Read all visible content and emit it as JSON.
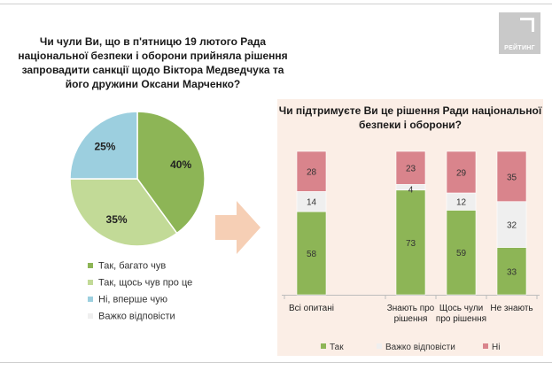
{
  "logo": {
    "text": "РЕЙТИНГ"
  },
  "chart_data": [
    {
      "type": "pie",
      "title": "Чи чули Ви, що в п'ятницю 19 лютого Рада національної безпеки і оборони прийняла рішення запровадити санкції щодо Віктора Медведчука та його дружини Оксани Марченко?",
      "slices": [
        {
          "label": "Так, багато чув",
          "value": 40,
          "display": "40%",
          "color": "#8db556"
        },
        {
          "label": "Так, щось чув про це",
          "value": 35,
          "display": "35%",
          "color": "#c2da97"
        },
        {
          "label": "Ні, вперше чую",
          "value": 25,
          "display": "25%",
          "color": "#9ccfdf"
        },
        {
          "label": "Важко відповісти",
          "value": 0,
          "display": "",
          "color": "#efefef"
        }
      ],
      "legend_position": "bottom"
    },
    {
      "type": "bar",
      "stacked": true,
      "title": "Чи підтримуєте Ви це рішення Ради національної безпеки і оборони?",
      "categories": [
        "Всі опитані",
        "Знають про рішення",
        "Щось чули про рішення",
        "Не знають"
      ],
      "category_lines": [
        [
          "Всі опитані"
        ],
        [
          "Знають про",
          "рішення"
        ],
        [
          "Щось чули",
          "про рішення"
        ],
        [
          "Не знають"
        ]
      ],
      "series": [
        {
          "name": "Так",
          "values": [
            58,
            73,
            59,
            33
          ],
          "color": "#8db556"
        },
        {
          "name": "Важко відповісти",
          "values": [
            14,
            4,
            12,
            32
          ],
          "color": "#efefef"
        },
        {
          "name": "Ні",
          "values": [
            28,
            23,
            29,
            35
          ],
          "color": "#d9848c"
        }
      ],
      "ylim": [
        0,
        100
      ],
      "legend_position": "bottom"
    }
  ]
}
